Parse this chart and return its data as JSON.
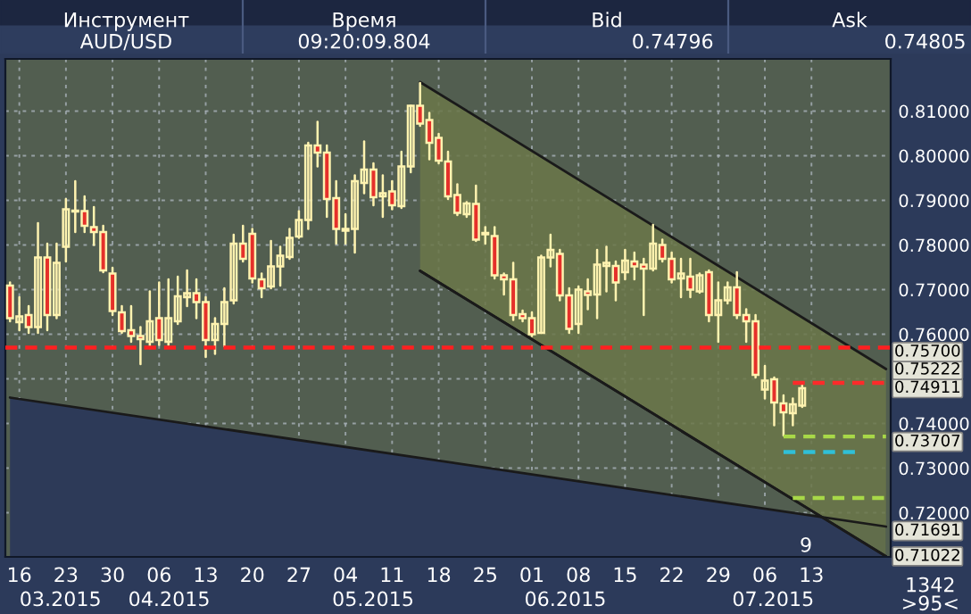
{
  "chart_data": {
    "type": "candlestick",
    "categories": [
      null,
      "16",
      null,
      null,
      null,
      null,
      "23",
      null,
      null,
      null,
      null,
      "30",
      null,
      null,
      null,
      null,
      "06",
      null,
      null,
      null,
      null,
      "13",
      null,
      null,
      null,
      null,
      "20",
      null,
      null,
      null,
      null,
      "27",
      null,
      null,
      null,
      null,
      "04",
      null,
      null,
      null,
      null,
      "11",
      null,
      null,
      null,
      null,
      "18",
      null,
      null,
      null,
      null,
      "25",
      null,
      null,
      null,
      null,
      "01",
      null,
      null,
      null,
      null,
      "08",
      null,
      null,
      null,
      null,
      "15",
      null,
      null,
      null,
      null,
      "22",
      null,
      null,
      null,
      null,
      "29",
      null,
      null,
      null,
      null,
      "06",
      null,
      null,
      null,
      null,
      "13",
      null,
      null,
      null,
      null,
      null,
      null,
      null,
      null
    ],
    "ohlc": [
      [
        0.7709,
        0.7716,
        0.7629,
        0.7636
      ],
      [
        0.7627,
        0.7683,
        0.7609,
        0.764
      ],
      [
        0.7643,
        0.7663,
        0.7603,
        0.7616
      ],
      [
        0.7616,
        0.7849,
        0.7603,
        0.7772
      ],
      [
        0.7772,
        0.7803,
        0.7609,
        0.7643
      ],
      [
        0.7643,
        0.7803,
        0.7636,
        0.776
      ],
      [
        0.7796,
        0.7903,
        0.7763,
        0.788
      ],
      [
        0.7875,
        0.7943,
        0.7829,
        0.7877
      ],
      [
        0.7876,
        0.7909,
        0.7829,
        0.7843
      ],
      [
        0.784,
        0.7885,
        0.78,
        0.7829
      ],
      [
        0.7829,
        0.7843,
        0.7739,
        0.7743
      ],
      [
        0.7736,
        0.7749,
        0.7643,
        0.7652
      ],
      [
        0.7649,
        0.7663,
        0.7603,
        0.7607
      ],
      [
        0.7609,
        0.7663,
        0.7583,
        0.7596
      ],
      [
        0.7596,
        0.7616,
        0.7533,
        0.7589
      ],
      [
        0.7583,
        0.7696,
        0.7569,
        0.7629
      ],
      [
        0.7636,
        0.7716,
        0.7576,
        0.7587
      ],
      [
        0.7583,
        0.7723,
        0.7576,
        0.7636
      ],
      [
        0.7629,
        0.7729,
        0.7623,
        0.7685
      ],
      [
        0.7683,
        0.7743,
        0.7663,
        0.7692
      ],
      [
        0.7692,
        0.7723,
        0.7636,
        0.7672
      ],
      [
        0.7672,
        0.7683,
        0.7549,
        0.7587
      ],
      [
        0.7587,
        0.7636,
        0.7556,
        0.7623
      ],
      [
        0.7623,
        0.7703,
        0.7573,
        0.7672
      ],
      [
        0.7676,
        0.7823,
        0.7669,
        0.7803
      ],
      [
        0.7803,
        0.7843,
        0.7763,
        0.7769
      ],
      [
        0.7825,
        0.7836,
        0.7716,
        0.7725
      ],
      [
        0.7723,
        0.7736,
        0.7683,
        0.7703
      ],
      [
        0.7707,
        0.7809,
        0.7703,
        0.7752
      ],
      [
        0.7752,
        0.7796,
        0.7709,
        0.7776
      ],
      [
        0.7773,
        0.7836,
        0.7769,
        0.7816
      ],
      [
        0.7819,
        0.7876,
        0.7816,
        0.7856
      ],
      [
        0.7856,
        0.8029,
        0.7836,
        0.8023
      ],
      [
        0.8023,
        0.8076,
        0.7976,
        0.8007
      ],
      [
        0.8007,
        0.8023,
        0.7863,
        0.7903
      ],
      [
        0.7905,
        0.7943,
        0.7803,
        0.7836
      ],
      [
        0.7836,
        0.7869,
        0.7803,
        0.7832
      ],
      [
        0.7836,
        0.7956,
        0.7783,
        0.7943
      ],
      [
        0.7939,
        0.8032,
        0.7916,
        0.7969
      ],
      [
        0.7969,
        0.7983,
        0.7889,
        0.7907
      ],
      [
        0.7909,
        0.7956,
        0.7863,
        0.7916
      ],
      [
        0.792,
        0.7943,
        0.788,
        0.7889
      ],
      [
        0.7887,
        0.8009,
        0.7883,
        0.7976
      ],
      [
        0.7976,
        0.8112,
        0.7963,
        0.8112
      ],
      [
        0.8112,
        0.8163,
        0.8067,
        0.8072
      ],
      [
        0.808,
        0.8096,
        0.7992,
        0.8029
      ],
      [
        0.804,
        0.8049,
        0.7983,
        0.7989
      ],
      [
        0.7987,
        0.8009,
        0.7903,
        0.7909
      ],
      [
        0.7912,
        0.7936,
        0.7867,
        0.7872
      ],
      [
        0.7869,
        0.7896,
        0.7863,
        0.7893
      ],
      [
        0.7892,
        0.7933,
        0.7809,
        0.7812
      ],
      [
        0.7824,
        0.784,
        0.7803,
        0.7827
      ],
      [
        0.782,
        0.784,
        0.7725,
        0.7732
      ],
      [
        0.7732,
        0.7736,
        0.7689,
        0.7723
      ],
      [
        0.7723,
        0.776,
        0.7632,
        0.7643
      ],
      [
        0.7645,
        0.7653,
        0.7629,
        0.7636
      ],
      [
        0.7636,
        0.7649,
        0.7596,
        0.76
      ],
      [
        0.7603,
        0.7776,
        0.7603,
        0.7772
      ],
      [
        0.7772,
        0.7823,
        0.7752,
        0.7789
      ],
      [
        0.778,
        0.7789,
        0.7676,
        0.7687
      ],
      [
        0.7687,
        0.7703,
        0.7603,
        0.7612
      ],
      [
        0.7623,
        0.7707,
        0.7603,
        0.77
      ],
      [
        0.7696,
        0.7723,
        0.7656,
        0.7688
      ],
      [
        0.7689,
        0.7789,
        0.7636,
        0.7756
      ],
      [
        0.7753,
        0.7796,
        0.7696,
        0.776
      ],
      [
        0.7753,
        0.7763,
        0.7676,
        0.7716
      ],
      [
        0.7739,
        0.7789,
        0.7723,
        0.7765
      ],
      [
        0.7763,
        0.7783,
        0.7723,
        0.7752
      ],
      [
        0.7756,
        0.7769,
        0.7643,
        0.7747
      ],
      [
        0.7747,
        0.7845,
        0.7743,
        0.7803
      ],
      [
        0.78,
        0.7812,
        0.7763,
        0.7769
      ],
      [
        0.7769,
        0.7783,
        0.7716,
        0.7723
      ],
      [
        0.7725,
        0.7769,
        0.7683,
        0.7736
      ],
      [
        0.7729,
        0.7769,
        0.7683,
        0.77
      ],
      [
        0.7696,
        0.7736,
        0.7693,
        0.7732
      ],
      [
        0.7739,
        0.7743,
        0.7629,
        0.7643
      ],
      [
        0.7643,
        0.7716,
        0.7583,
        0.7676
      ],
      [
        0.7676,
        0.7716,
        0.7669,
        0.7705
      ],
      [
        0.7705,
        0.7739,
        0.7636,
        0.7643
      ],
      [
        0.7643,
        0.7656,
        0.7583,
        0.7629
      ],
      [
        0.7629,
        0.7643,
        0.7503,
        0.7509
      ],
      [
        0.7476,
        0.7529,
        0.7456,
        0.7496
      ],
      [
        0.7499,
        0.7503,
        0.7396,
        0.7447
      ],
      [
        0.7445,
        0.7463,
        0.7373,
        0.7425
      ],
      [
        0.7423,
        0.7456,
        0.7396,
        0.7443
      ],
      [
        0.744,
        0.7485,
        0.7437,
        0.7479
      ],
      null,
      null,
      null,
      null,
      null,
      null,
      null,
      null,
      null
    ],
    "series": [
      {
        "type": "area",
        "name": "0.71691",
        "color": "#2d3a58",
        "values": [
          0.7458,
          null,
          null,
          null,
          null,
          null,
          null,
          null,
          null,
          null,
          null,
          null,
          null,
          null,
          null,
          null,
          null,
          null,
          null,
          null,
          null,
          null,
          null,
          null,
          null,
          null,
          null,
          null,
          null,
          null,
          null,
          null,
          null,
          null,
          null,
          null,
          null,
          null,
          null,
          null,
          null,
          null,
          null,
          null,
          null,
          null,
          null,
          null,
          null,
          null,
          null,
          null,
          null,
          null,
          null,
          null,
          null,
          null,
          null,
          null,
          null,
          null,
          null,
          null,
          null,
          null,
          null,
          null,
          null,
          null,
          null,
          null,
          null,
          null,
          null,
          null,
          null,
          null,
          null,
          null,
          null,
          null,
          null,
          null,
          null,
          null,
          null,
          null,
          null,
          null,
          null,
          null,
          null,
          null,
          0.7169
        ]
      },
      {
        "type": "line",
        "name": "0.71022",
        "color": "#1a1a1a",
        "values": [
          null,
          null,
          null,
          null,
          null,
          null,
          null,
          null,
          null,
          null,
          null,
          null,
          null,
          null,
          null,
          null,
          null,
          null,
          null,
          null,
          null,
          null,
          null,
          null,
          null,
          null,
          null,
          null,
          null,
          null,
          null,
          null,
          null,
          null,
          null,
          null,
          null,
          null,
          null,
          null,
          null,
          null,
          null,
          null,
          0.7742,
          null,
          null,
          null,
          null,
          null,
          null,
          null,
          null,
          null,
          null,
          null,
          null,
          null,
          null,
          null,
          null,
          null,
          null,
          null,
          null,
          null,
          null,
          null,
          null,
          null,
          null,
          null,
          null,
          null,
          null,
          null,
          null,
          null,
          null,
          null,
          null,
          null,
          null,
          null,
          null,
          null,
          null,
          null,
          null,
          null,
          null,
          null,
          null,
          null,
          0.71022
        ]
      },
      {
        "type": "line",
        "name": "0.75222",
        "color": "#1a1a1a",
        "values": [
          null,
          null,
          null,
          null,
          null,
          null,
          null,
          null,
          null,
          null,
          null,
          null,
          null,
          null,
          null,
          null,
          null,
          null,
          null,
          null,
          null,
          null,
          null,
          null,
          null,
          null,
          null,
          null,
          null,
          null,
          null,
          null,
          null,
          null,
          null,
          null,
          null,
          null,
          null,
          null,
          null,
          null,
          null,
          null,
          0.8165,
          null,
          null,
          null,
          null,
          null,
          null,
          null,
          null,
          null,
          null,
          null,
          null,
          null,
          null,
          null,
          null,
          null,
          null,
          null,
          null,
          null,
          null,
          null,
          null,
          null,
          null,
          null,
          null,
          null,
          null,
          null,
          null,
          null,
          null,
          null,
          null,
          null,
          null,
          null,
          null,
          null,
          null,
          null,
          null,
          null,
          null,
          null,
          null,
          null,
          0.7522
        ],
        "upper": [
          null,
          null,
          null,
          null,
          null,
          null,
          null,
          null,
          null,
          null,
          null,
          null,
          null,
          null,
          null,
          null,
          null,
          null,
          null,
          null,
          null,
          null,
          null,
          null,
          null,
          null,
          null,
          null,
          null,
          null,
          null,
          null,
          null,
          null,
          null,
          null,
          null,
          null,
          null,
          null,
          null,
          null,
          null,
          null,
          0.8165,
          null,
          null,
          null,
          null,
          null,
          null,
          null,
          null,
          null,
          null,
          null,
          null,
          null,
          null,
          null,
          null,
          null,
          null,
          null,
          null,
          null,
          null,
          null,
          null,
          null,
          null,
          null,
          null,
          null,
          null,
          null,
          null,
          null,
          null,
          null,
          null,
          null,
          null,
          null,
          null,
          null,
          null,
          null,
          null,
          null,
          null,
          null,
          null,
          null,
          0.7522
        ],
        "lower": [
          null,
          null,
          null,
          null,
          null,
          null,
          null,
          null,
          null,
          null,
          null,
          null,
          null,
          null,
          null,
          null,
          null,
          null,
          null,
          null,
          null,
          null,
          null,
          null,
          null,
          null,
          null,
          null,
          null,
          null,
          null,
          null,
          null,
          null,
          null,
          null,
          null,
          null,
          null,
          null,
          null,
          null,
          null,
          null,
          0.7742,
          null,
          null,
          null,
          null,
          null,
          null,
          null,
          null,
          null,
          null,
          null,
          null,
          null,
          null,
          null,
          null,
          null,
          null,
          null,
          null,
          null,
          null,
          null,
          null,
          null,
          null,
          null,
          null,
          null,
          null,
          null,
          null,
          null,
          null,
          null,
          null,
          null,
          null,
          null,
          null,
          null,
          null,
          null,
          null,
          null,
          null,
          null,
          null,
          null,
          0.71022
        ]
      },
      {
        "type": "line",
        "name": "0.74911",
        "color": "#ff2a2a",
        "line_style": "dashed",
        "values": [
          null,
          null,
          null,
          null,
          null,
          null,
          null,
          null,
          null,
          null,
          null,
          null,
          null,
          null,
          null,
          null,
          null,
          null,
          null,
          null,
          null,
          null,
          null,
          null,
          null,
          null,
          null,
          null,
          null,
          null,
          null,
          null,
          null,
          null,
          null,
          null,
          null,
          null,
          null,
          null,
          null,
          null,
          null,
          null,
          null,
          null,
          null,
          null,
          null,
          null,
          null,
          null,
          null,
          null,
          null,
          null,
          null,
          null,
          null,
          null,
          null,
          null,
          null,
          null,
          null,
          null,
          null,
          null,
          null,
          null,
          null,
          null,
          null,
          null,
          null,
          null,
          null,
          null,
          null,
          null,
          null,
          null,
          null,
          null,
          0.74911,
          0.74911,
          0.74911,
          0.74911,
          0.74911,
          0.74911,
          0.74911,
          0.74911,
          0.74911,
          0.74911,
          0.74911
        ]
      },
      {
        "type": "line",
        "name": "0.73707",
        "color": "#a8d848",
        "line_style": "dashed",
        "values": [
          null,
          null,
          null,
          null,
          null,
          null,
          null,
          null,
          null,
          null,
          null,
          null,
          null,
          null,
          null,
          null,
          null,
          null,
          null,
          null,
          null,
          null,
          null,
          null,
          null,
          null,
          null,
          null,
          null,
          null,
          null,
          null,
          null,
          null,
          null,
          null,
          null,
          null,
          null,
          null,
          null,
          null,
          null,
          null,
          null,
          null,
          null,
          null,
          null,
          null,
          null,
          null,
          null,
          null,
          null,
          null,
          null,
          null,
          null,
          null,
          null,
          null,
          null,
          null,
          null,
          null,
          null,
          null,
          null,
          null,
          null,
          null,
          null,
          null,
          null,
          null,
          null,
          null,
          null,
          null,
          null,
          null,
          null,
          0.73707,
          0.73707,
          0.73707,
          0.73707,
          0.73707,
          0.73707,
          0.73707,
          0.73707,
          0.73707,
          0.73707,
          0.73707,
          0.73707
        ]
      },
      {
        "type": "line",
        "color": "#30c0d8",
        "line_style": "dashed",
        "values": [
          null,
          null,
          null,
          null,
          null,
          null,
          null,
          null,
          null,
          null,
          null,
          null,
          null,
          null,
          null,
          null,
          null,
          null,
          null,
          null,
          null,
          null,
          null,
          null,
          null,
          null,
          null,
          null,
          null,
          null,
          null,
          null,
          null,
          null,
          null,
          null,
          null,
          null,
          null,
          null,
          null,
          null,
          null,
          null,
          null,
          null,
          null,
          null,
          null,
          null,
          null,
          null,
          null,
          null,
          null,
          null,
          null,
          null,
          null,
          null,
          null,
          null,
          null,
          null,
          null,
          null,
          null,
          null,
          null,
          null,
          null,
          null,
          null,
          null,
          null,
          null,
          null,
          null,
          null,
          null,
          null,
          null,
          null,
          0.7336,
          0.7336,
          0.7336,
          0.7336,
          0.7336,
          0.7336,
          0.7336,
          0.7336,
          0.7336,
          null,
          null,
          null
        ]
      },
      {
        "type": "line",
        "color": "#a8d848",
        "line_style": "dashed",
        "values": [
          null,
          null,
          null,
          null,
          null,
          null,
          null,
          null,
          null,
          null,
          null,
          null,
          null,
          null,
          null,
          null,
          null,
          null,
          null,
          null,
          null,
          null,
          null,
          null,
          null,
          null,
          null,
          null,
          null,
          null,
          null,
          null,
          null,
          null,
          null,
          null,
          null,
          null,
          null,
          null,
          null,
          null,
          null,
          null,
          null,
          null,
          null,
          null,
          null,
          null,
          null,
          null,
          null,
          null,
          null,
          null,
          null,
          null,
          null,
          null,
          null,
          null,
          null,
          null,
          null,
          null,
          null,
          null,
          null,
          null,
          null,
          null,
          null,
          null,
          null,
          null,
          null,
          null,
          null,
          null,
          null,
          null,
          null,
          null,
          0.7233,
          0.7233,
          0.7233,
          0.7233,
          0.7233,
          0.7233,
          0.7233,
          0.7233,
          0.7233,
          0.7233,
          0.7233
        ]
      }
    ],
    "ref_lines": [
      {
        "axis": "y",
        "value": 0.757,
        "label": "0.75700",
        "color": "#ff2020",
        "line_style": "dashed"
      }
    ],
    "ylim": [
      0.7101,
      0.8217
    ],
    "yticks": [
      {
        "value": 0.72,
        "label": "0.72000"
      },
      {
        "value": 0.73,
        "label": "0.73000"
      },
      {
        "value": 0.74,
        "label": "0.74000"
      },
      {
        "value": 0.75,
        "label": null
      },
      {
        "value": 0.76,
        "label": "0.76000"
      },
      {
        "value": 0.77,
        "label": "0.77000"
      },
      {
        "value": 0.78,
        "label": "0.78000"
      },
      {
        "value": 0.79,
        "label": "0.79000"
      },
      {
        "value": 0.8,
        "label": "0.80000"
      },
      {
        "value": 0.81,
        "label": "0.81000"
      }
    ],
    "grid": true,
    "annotations": [
      "Инструмент",
      "Время",
      "Bid",
      "Ask",
      "AUD/USD",
      "09:20:09.804",
      "0.74796",
      "0.74805",
      "03.2015",
      "04.2015",
      "05.2015",
      "06.2015",
      "07.2015",
      "9",
      "1342",
      ">95<"
    ]
  }
}
